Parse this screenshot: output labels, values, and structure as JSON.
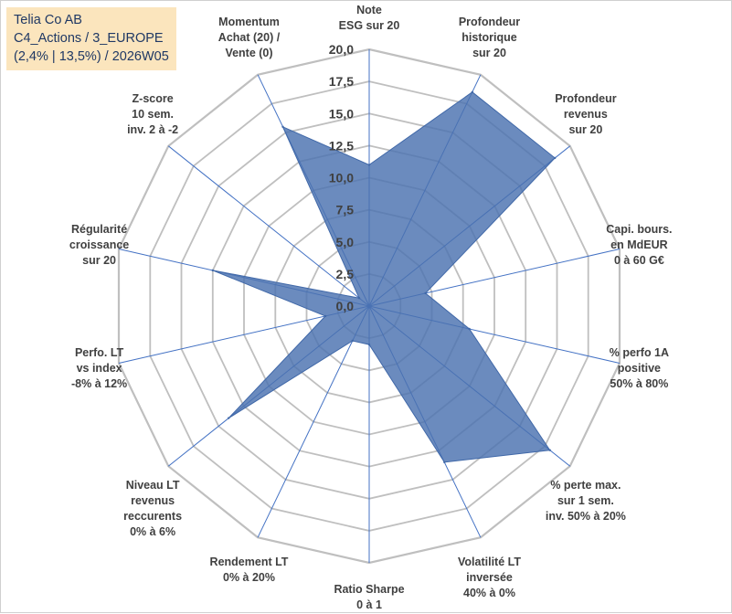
{
  "info": {
    "line1": "Telia Co AB",
    "line2": "C4_Actions / 3_EUROPE",
    "line3": "(2,4% | 13,5%) / 2026W05"
  },
  "colors": {
    "grid": "#bfbfbf",
    "spoke": "#4472c4",
    "fill": "#4a72b0",
    "stroke": "#4068a8",
    "label": "#404040"
  },
  "chart_data": {
    "type": "radar",
    "title": "",
    "rmin": 0,
    "rmax": 20,
    "tick_step": 2.5,
    "tick_labels": [
      "0,0",
      "2,5",
      "5,0",
      "7,5",
      "10,0",
      "12,5",
      "15,0",
      "17,5",
      "20,0"
    ],
    "axes": [
      {
        "lines": [
          "Note",
          "ESG sur 20"
        ]
      },
      {
        "lines": [
          "Profondeur",
          "historique",
          "sur 20"
        ]
      },
      {
        "lines": [
          "Profondeur",
          "revenus",
          "sur 20"
        ]
      },
      {
        "lines": [
          "Capi. bours.",
          "en MdEUR",
          "0 à 60 G€"
        ]
      },
      {
        "lines": [
          "% perfo 1A",
          "positive",
          "50% à 80%"
        ]
      },
      {
        "lines": [
          "% perte max.",
          "sur 1 sem.",
          "inv. 50% à 20%"
        ]
      },
      {
        "lines": [
          "Volatilité LT",
          "inversée",
          "40% à 0%"
        ]
      },
      {
        "lines": [
          "Ratio Sharpe",
          "0 à 1"
        ]
      },
      {
        "lines": [
          "Rendement LT",
          "0% à 20%"
        ]
      },
      {
        "lines": [
          "Niveau LT",
          "revenus",
          "reccurents",
          "0% à 6%"
        ]
      },
      {
        "lines": [
          "Perfo. LT",
          "vs index",
          "-8% à 12%"
        ]
      },
      {
        "lines": [
          "Régularité",
          "croissance",
          "sur 20"
        ]
      },
      {
        "lines": [
          "Z-score",
          "10 sem.",
          "inv. 2 à -2"
        ]
      },
      {
        "lines": [
          "Momentum",
          "Achat (20) /",
          "Vente (0)"
        ]
      }
    ],
    "series": [
      {
        "name": "Telia Co AB",
        "values": [
          11.0,
          18.5,
          18.5,
          4.5,
          8.0,
          18.0,
          13.5,
          3.0,
          3.0,
          14.0,
          3.5,
          12.5,
          1.0,
          15.5
        ]
      }
    ]
  }
}
